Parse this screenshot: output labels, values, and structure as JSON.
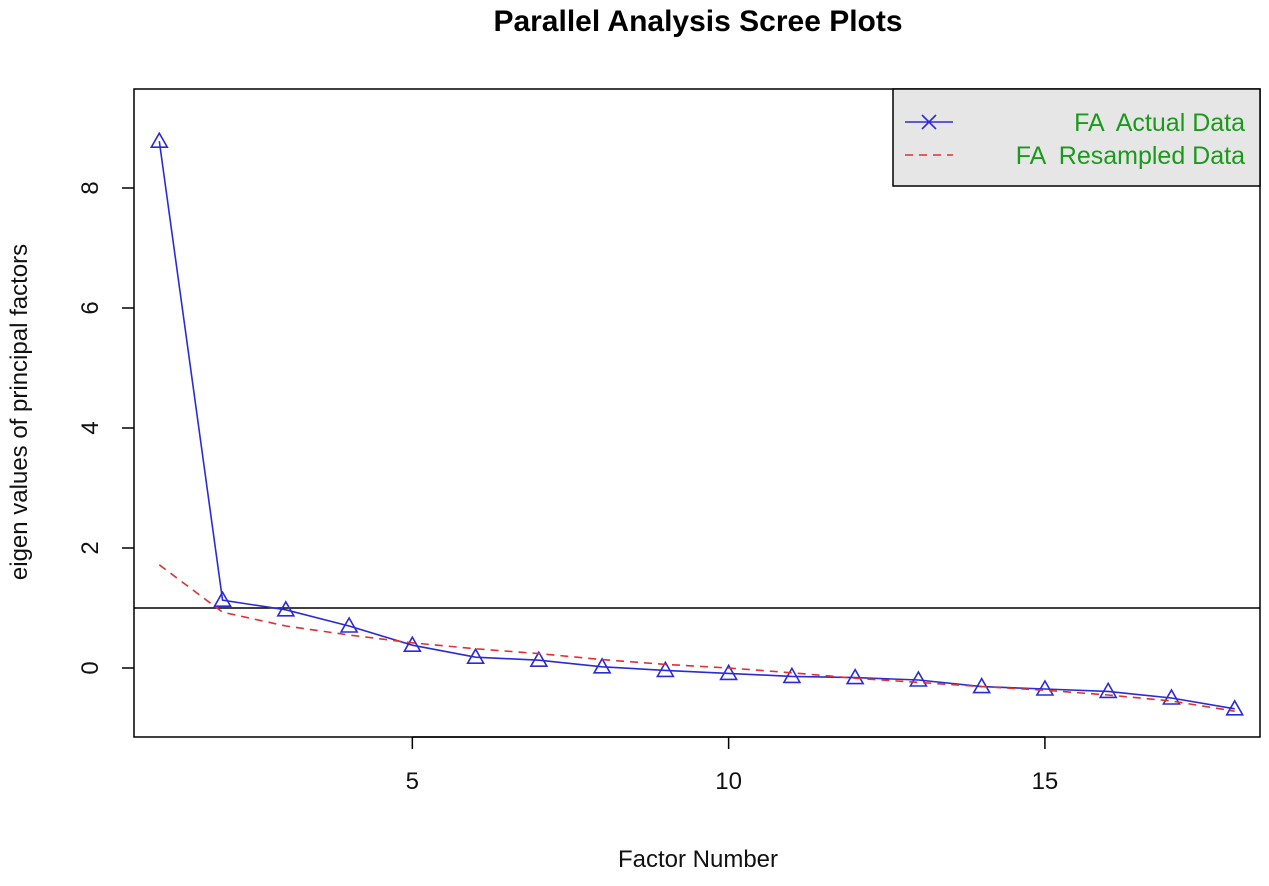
{
  "chart_data": {
    "type": "line",
    "title": "Parallel Analysis Scree Plots",
    "xlabel": "Factor Number",
    "ylabel": "eigen values of principal factors",
    "xlim": [
      0.6,
      18.4
    ],
    "ylim": [
      -1.15,
      9.65
    ],
    "x_ticks": [
      5,
      10,
      15
    ],
    "y_ticks": [
      0,
      2,
      4,
      6,
      8
    ],
    "grid": false,
    "reference_line": {
      "y": 1,
      "color": "#000000"
    },
    "legend_position": "top-right",
    "legend_text_color": "#1a9a1a",
    "legend_background": "#e6e6e6",
    "x": [
      1,
      2,
      3,
      4,
      5,
      6,
      7,
      8,
      9,
      10,
      11,
      12,
      13,
      14,
      15,
      16,
      17,
      18
    ],
    "series": [
      {
        "name": "FA  Actual Data",
        "style": "solid",
        "color": "#2b2bd6",
        "marker": "triangle",
        "values": [
          8.78,
          1.13,
          0.97,
          0.7,
          0.38,
          0.18,
          0.13,
          0.02,
          -0.04,
          -0.09,
          -0.14,
          -0.16,
          -0.2,
          -0.31,
          -0.35,
          -0.39,
          -0.5,
          -0.68
        ]
      },
      {
        "name": "FA  Resampled Data",
        "style": "dashed",
        "color": "#e03030",
        "marker": "none",
        "values": [
          1.72,
          0.93,
          0.7,
          0.55,
          0.42,
          0.32,
          0.24,
          0.14,
          0.06,
          0.0,
          -0.08,
          -0.17,
          -0.24,
          -0.31,
          -0.37,
          -0.45,
          -0.55,
          -0.72
        ]
      }
    ]
  }
}
